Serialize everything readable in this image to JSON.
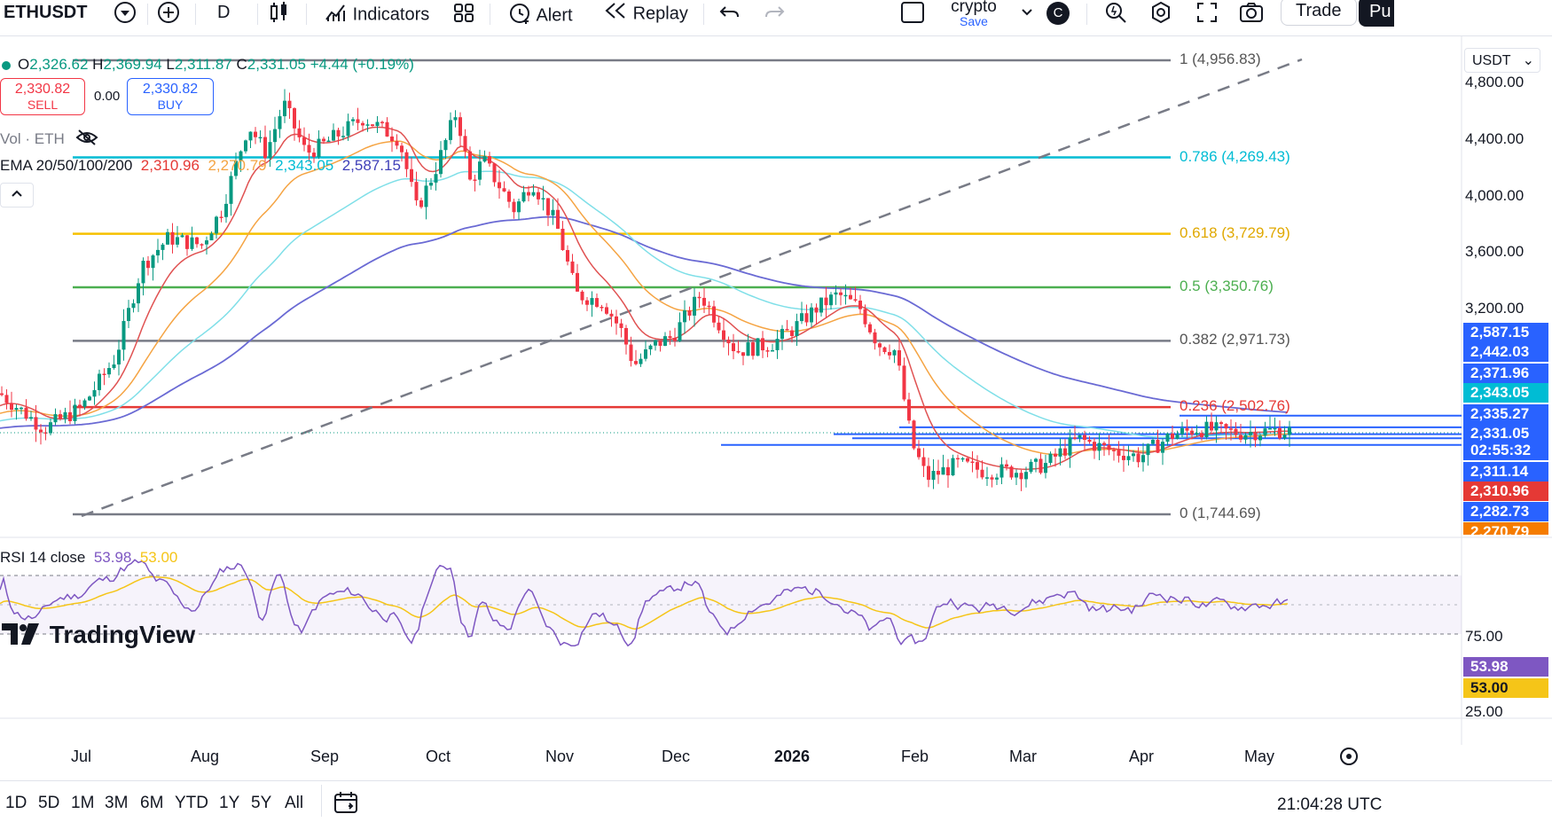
{
  "toolbar": {
    "symbol": "ETHUSDT",
    "interval": "D",
    "indicators_label": "Indicators",
    "alert_label": "Alert",
    "replay_label": "Replay",
    "layout_name": "crypto",
    "layout_save": "Save",
    "avatar_letter": "C",
    "trade_label": "Trade",
    "publish_label": "Pu"
  },
  "legend": {
    "open_label": "O",
    "open": "2,326.62",
    "high_label": "H",
    "high": "2,369.94",
    "low_label": "L",
    "low": "2,311.87",
    "close_label": "C",
    "close": "2,331.05",
    "change": "+4.44 (+0.19%)",
    "sell_price": "2,330.82",
    "sell_label": "SELL",
    "spread": "0.00",
    "buy_price": "2,330.82",
    "buy_label": "BUY",
    "vol_label": "Vol · ETH",
    "ema_label": "EMA 20/50/100/200",
    "ema20": "2,310.96",
    "ema50": "2,270.79",
    "ema100": "2,343.05",
    "ema200": "2,587.15",
    "rsi_label": "RSI 14 close",
    "rsi_value": "53.98",
    "rsi_ma": "53.00"
  },
  "currency": "USDT",
  "fib_levels": [
    {
      "label": "1 (4,956.83)",
      "price": 4956.83,
      "color": "#787b86"
    },
    {
      "label": "0.786 (4,269.43)",
      "price": 4269.43,
      "color": "#00bcd4"
    },
    {
      "label": "0.618 (3,729.79)",
      "price": 3729.79,
      "color": "#f6c000"
    },
    {
      "label": "0.5 (3,350.76)",
      "price": 3350.76,
      "color": "#4caf50"
    },
    {
      "label": "0.382 (2,971.73)",
      "price": 2971.73,
      "color": "#787b86"
    },
    {
      "label": "0.236 (2,502.76)",
      "price": 2502.76,
      "color": "#e53935"
    },
    {
      "label": "0 (1,744.69)",
      "price": 1744.69,
      "color": "#787b86"
    }
  ],
  "price_axis": [
    "4,800.00",
    "4,400.00",
    "4,000.00",
    "3,600.00",
    "3,200.00"
  ],
  "price_axis_values": [
    4800,
    4400,
    4000,
    3600,
    3200
  ],
  "price_labels": [
    {
      "text": "2,587.15",
      "price": 2587.15,
      "bg": "#2962ff"
    },
    {
      "text": "2,442.03",
      "price": 2442.03,
      "bg": "#2962ff"
    },
    {
      "text": "2,371.96",
      "price": 2371.96,
      "bg": "#2962ff"
    },
    {
      "text": "2,343.05",
      "price": 2343.05,
      "bg": "#00bcd4"
    },
    {
      "text": "2,335.27",
      "price": 2335.27,
      "bg": "#2962ff"
    },
    {
      "text": "2,331.05",
      "price": 2331.05,
      "bg": "#2962ff"
    },
    {
      "text": "02:55:32",
      "price": 2331.05,
      "bg": "#2962ff"
    },
    {
      "text": "2,311.14",
      "price": 2311.14,
      "bg": "#2962ff"
    },
    {
      "text": "2,310.96",
      "price": 2310.96,
      "bg": "#e53935"
    },
    {
      "text": "2,282.73",
      "price": 2282.73,
      "bg": "#2962ff"
    },
    {
      "text": "2,270.79",
      "price": 2270.79,
      "bg": "#f57c00"
    }
  ],
  "rsi_axis": [
    "75.00",
    "25.00"
  ],
  "rsi_axis_values": [
    75,
    25
  ],
  "x_axis": [
    "Jul",
    "Aug",
    "Sep",
    "Oct",
    "Nov",
    "Dec",
    "2026",
    "Feb",
    "Mar",
    "Apr",
    "May"
  ],
  "ranges": [
    "1D",
    "5D",
    "1M",
    "3M",
    "6M",
    "YTD",
    "1Y",
    "5Y",
    "All"
  ],
  "clock": "21:04:28 UTC",
  "branding": "TradingView",
  "colors": {
    "up": "#089981",
    "down": "#f23645",
    "ema20": "#e05252",
    "ema50": "#f5a443",
    "ema100": "#7fdfe8",
    "ema200": "#6a6ad4",
    "rsi": "#7e57c2",
    "rsi_ma": "#f5c518"
  },
  "chart_data": {
    "type": "candlestick",
    "symbol": "ETHUSDT",
    "x_ticks": [
      "Jul",
      "Aug",
      "Sep",
      "Oct",
      "Nov",
      "Dec",
      "2026",
      "Feb",
      "Mar",
      "Apr",
      "May"
    ],
    "close_path": [
      {
        "month": "Jul",
        "close": 2500
      },
      {
        "month": "Aug",
        "close": 3700
      },
      {
        "month": "Sep",
        "close": 4350
      },
      {
        "month": "Oct",
        "close": 4150
      },
      {
        "month": "Nov",
        "close": 3450
      },
      {
        "month": "Dec",
        "close": 2950
      },
      {
        "month": "2026",
        "close": 3000
      },
      {
        "month": "Feb",
        "close": 2250
      },
      {
        "month": "Mar",
        "close": 2050
      },
      {
        "month": "Apr",
        "close": 2150
      },
      {
        "month": "May",
        "close": 2331
      }
    ],
    "last_close": 2331.05
  }
}
